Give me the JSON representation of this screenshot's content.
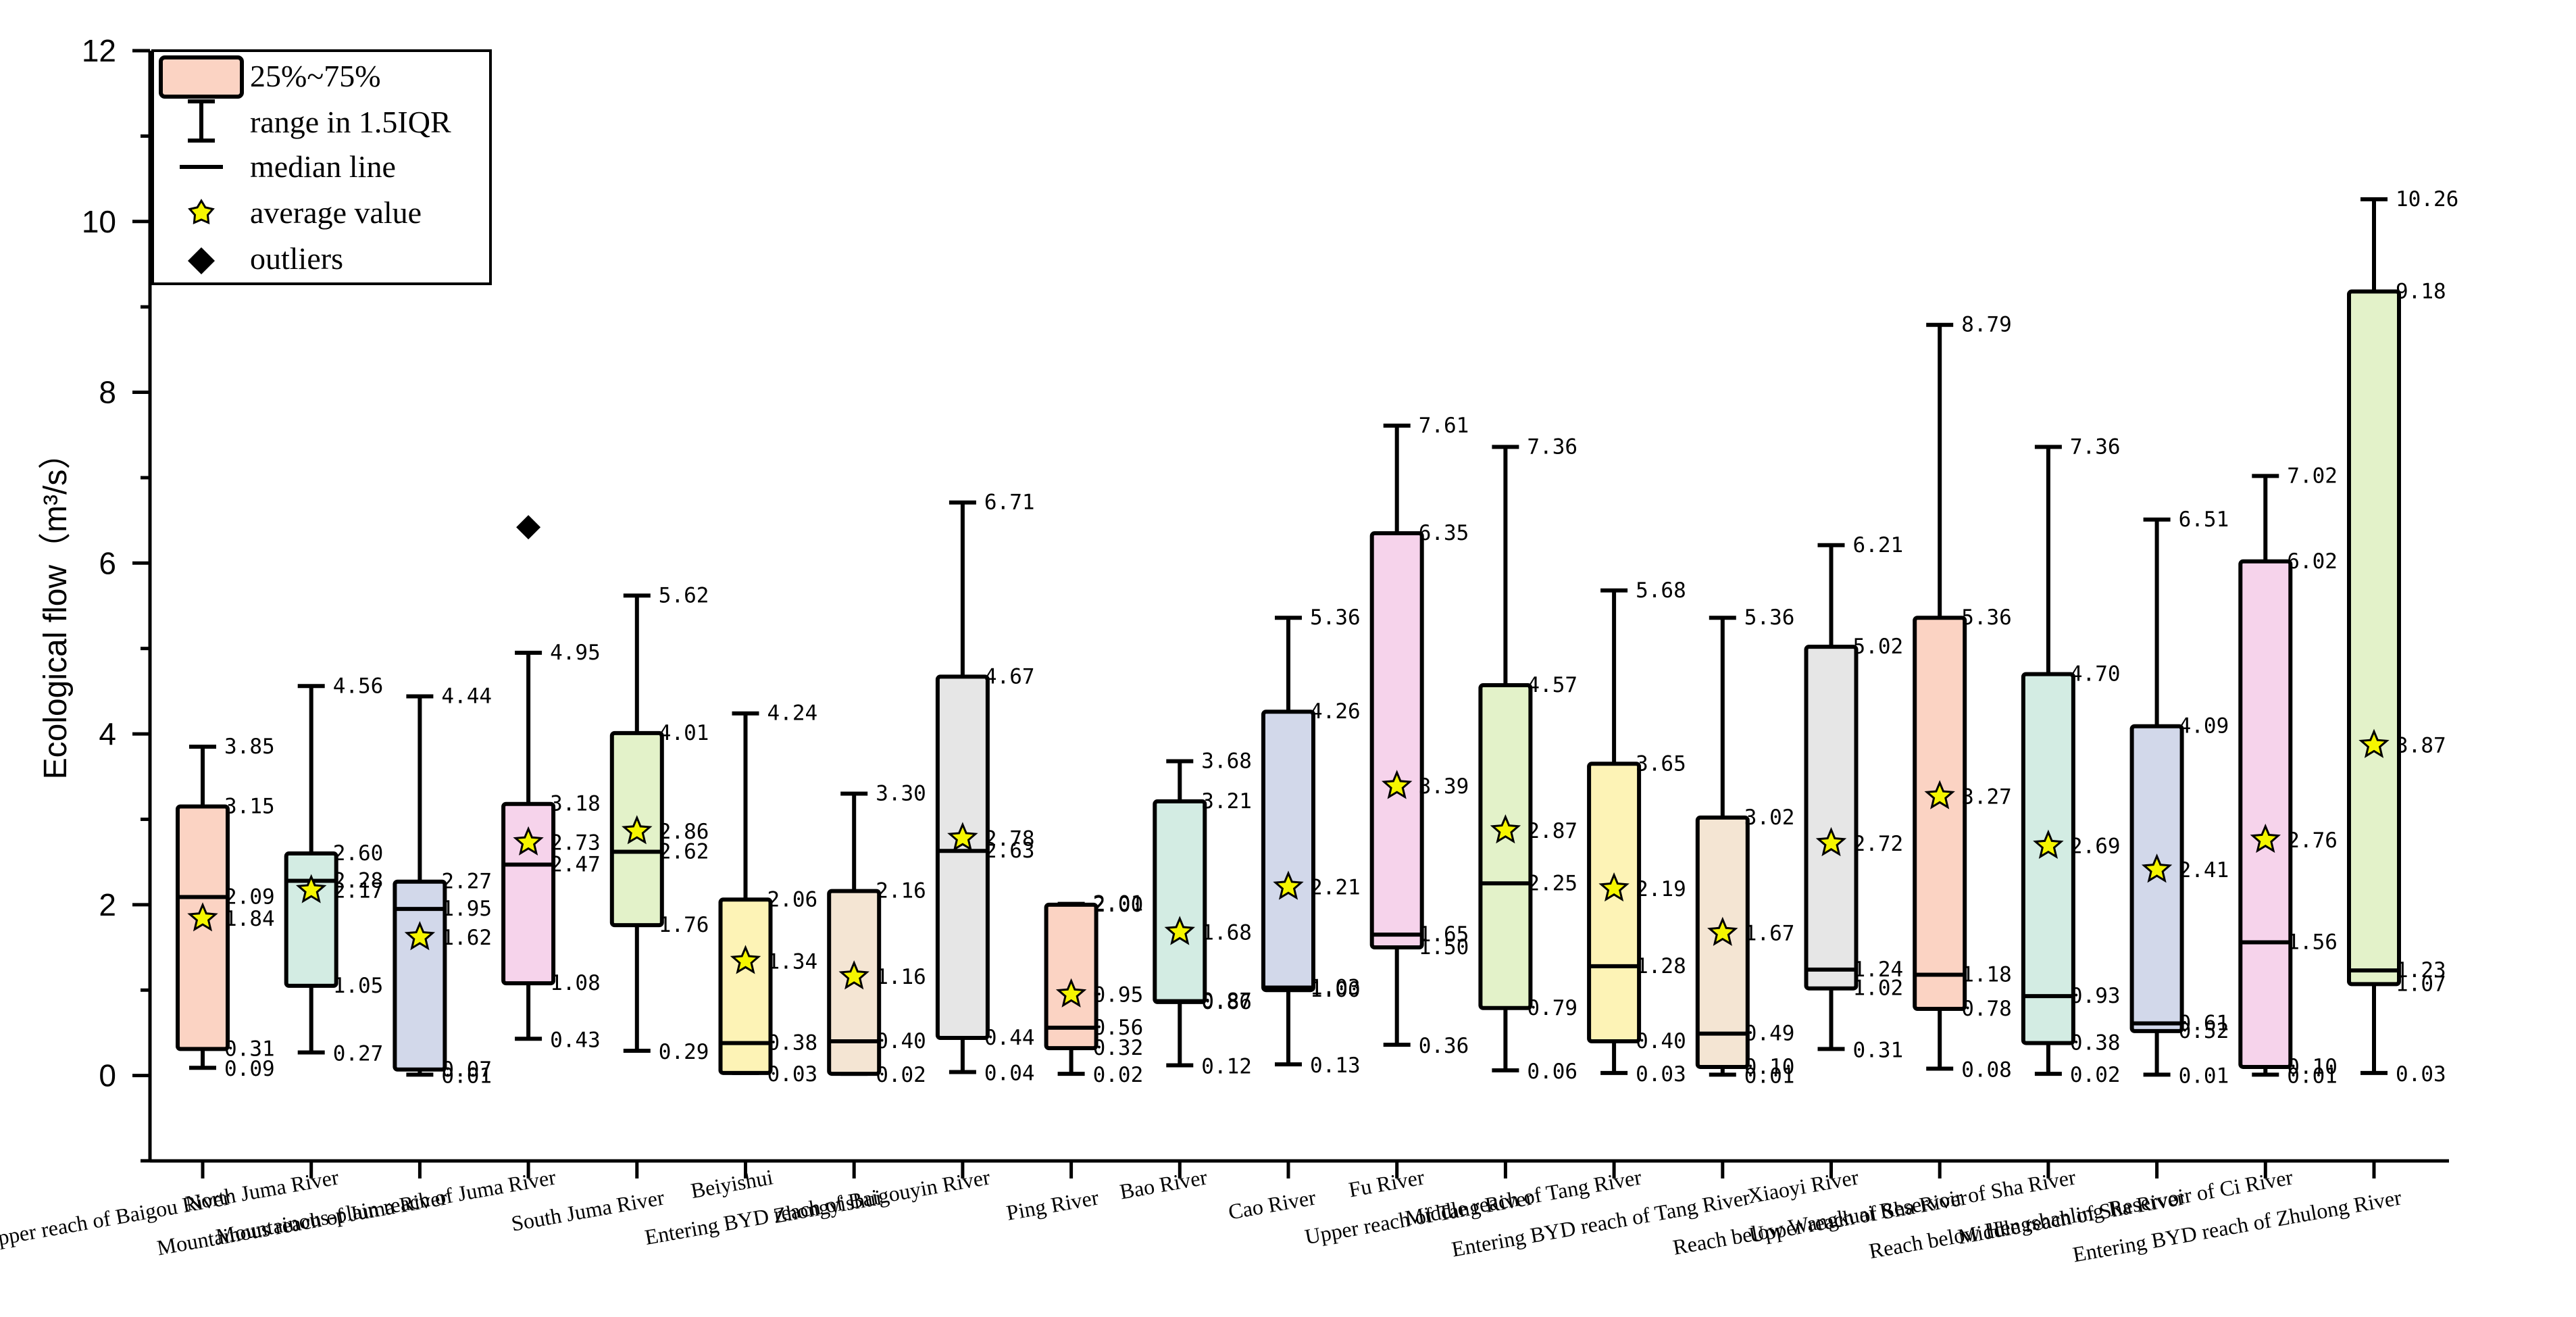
{
  "chart_data": {
    "type": "boxplot",
    "title": "",
    "xlabel": "",
    "ylabel": "Ecological flow（m³/s）",
    "ylim": [
      -1,
      12
    ],
    "yticks": [
      0,
      2,
      4,
      6,
      8,
      10,
      12
    ],
    "legend": {
      "position": "top-left",
      "items": [
        {
          "label": "25%~75%",
          "symbol": "box"
        },
        {
          "label": "range in 1.5IQR",
          "symbol": "whisker"
        },
        {
          "label": "median line",
          "symbol": "line"
        },
        {
          "label": "average value",
          "symbol": "star"
        },
        {
          "label": "outliers",
          "symbol": "diamond"
        }
      ]
    },
    "series": [
      {
        "name": "Upper reach of Baigou River",
        "color": "#fbd3c3",
        "min": 0.09,
        "q1": 0.31,
        "median": 2.09,
        "q3": 3.15,
        "max": 3.85,
        "mean": 1.84,
        "outliers": [],
        "labels": {
          "max": "3.85",
          "q3": "3.15",
          "median": "2.09",
          "mean": "1.84",
          "q1": "0.31",
          "min": "0.09"
        }
      },
      {
        "name": "North Juma River",
        "color": "#d3ece3",
        "min": 0.27,
        "q1": 1.05,
        "median": 2.28,
        "q3": 2.6,
        "max": 4.56,
        "mean": 2.17,
        "outliers": [],
        "labels": {
          "max": "4.56",
          "q3": "2.60",
          "median": "2.28",
          "mean": "2.17",
          "q1": "1.05",
          "min": "0.27"
        }
      },
      {
        "name": "Mountainous reach of Juma River",
        "color": "#d2d8ea",
        "min": 0.01,
        "q1": 0.07,
        "median": 1.95,
        "q3": 2.27,
        "max": 4.44,
        "mean": 1.62,
        "outliers": [],
        "labels": {
          "max": "4.44",
          "q3": "2.27",
          "median": "1.95",
          "mean": "1.62",
          "q1": "0.07",
          "min": "0.01"
        }
      },
      {
        "name": "Mountainous-plain reach of Juma River",
        "color": "#f6d3eb",
        "min": 0.43,
        "q1": 1.08,
        "median": 2.47,
        "q3": 3.18,
        "max": 4.95,
        "mean": 2.73,
        "outliers": [
          6.42
        ],
        "labels": {
          "max": "4.95",
          "q3": "3.18",
          "median": "2.47",
          "mean": "2.73",
          "q1": "1.08",
          "min": "0.43"
        }
      },
      {
        "name": "South Juma River",
        "color": "#e3f2c9",
        "min": 0.29,
        "q1": 1.76,
        "median": 2.62,
        "q3": 4.01,
        "max": 5.62,
        "mean": 2.86,
        "outliers": [],
        "labels": {
          "max": "5.62",
          "q3": "4.01",
          "median": "2.62",
          "mean": "2.86",
          "q1": "1.76",
          "min": "0.29"
        }
      },
      {
        "name": "Beiyishui",
        "color": "#fdf3b6",
        "min": 0.03,
        "q1": 0.03,
        "median": 0.38,
        "q3": 2.06,
        "max": 4.24,
        "mean": 1.34,
        "outliers": [],
        "labels": {
          "max": "4.24",
          "q3": "2.06",
          "median": "0.38",
          "mean": "1.34",
          "q1": "",
          "min": "0.03"
        }
      },
      {
        "name": "Zhongyishui",
        "color": "#f4e5d3",
        "min": 0.02,
        "q1": 0.02,
        "median": 0.4,
        "q3": 2.16,
        "max": 3.3,
        "mean": 1.16,
        "outliers": [],
        "labels": {
          "max": "3.30",
          "q3": "2.16",
          "median": "0.40",
          "mean": "1.16",
          "q1": "",
          "min": "0.02"
        }
      },
      {
        "name": "Entering BYD reach of Baigouyin River",
        "color": "#e6e6e6",
        "min": 0.04,
        "q1": 0.44,
        "median": 2.63,
        "q3": 4.67,
        "max": 6.71,
        "mean": 2.78,
        "outliers": [],
        "labels": {
          "max": "6.71",
          "q3": "4.67",
          "median": "2.63",
          "mean": "2.78",
          "q1": "0.44",
          "min": "0.04"
        }
      },
      {
        "name": "Ping River",
        "color": "#fbd3c3",
        "min": 0.02,
        "q1": 0.32,
        "median": 0.56,
        "q3": 2.0,
        "max": 2.01,
        "mean": 0.95,
        "outliers": [],
        "labels": {
          "max": "2.01",
          "q3": "2.00",
          "median": "0.56",
          "mean": "0.95",
          "q1": "0.32",
          "min": "0.02"
        }
      },
      {
        "name": "Bao River",
        "color": "#d3ece3",
        "min": 0.12,
        "q1": 0.86,
        "median": 0.87,
        "q3": 3.21,
        "max": 3.68,
        "mean": 1.68,
        "outliers": [],
        "labels": {
          "max": "3.68",
          "q3": "3.21",
          "median": "0.87",
          "mean": "1.68",
          "q1": "0.86",
          "min": "0.12"
        }
      },
      {
        "name": "Cao River",
        "color": "#d2d8ea",
        "min": 0.13,
        "q1": 1.0,
        "median": 1.03,
        "q3": 4.26,
        "max": 5.36,
        "mean": 2.21,
        "outliers": [],
        "labels": {
          "max": "5.36",
          "q3": "4.26",
          "median": "1.03",
          "mean": "2.21",
          "q1": "1.00",
          "min": "0.13"
        }
      },
      {
        "name": "Fu River",
        "color": "#f6d3eb",
        "min": 0.36,
        "q1": 1.5,
        "median": 1.65,
        "q3": 6.35,
        "max": 7.61,
        "mean": 3.39,
        "outliers": [],
        "labels": {
          "max": "7.61",
          "q3": "6.35",
          "median": "1.65",
          "mean": "3.39",
          "q1": "1.50",
          "min": "0.36"
        }
      },
      {
        "name": "Upper reach of Tang River",
        "color": "#e3f2c9",
        "min": 0.06,
        "q1": 0.79,
        "median": 2.25,
        "q3": 4.57,
        "max": 7.36,
        "mean": 2.87,
        "outliers": [],
        "labels": {
          "max": "7.36",
          "q3": "4.57",
          "median": "2.25",
          "mean": "2.87",
          "q1": "0.79",
          "min": "0.06"
        }
      },
      {
        "name": "Middle reach of Tang River",
        "color": "#fdf3b6",
        "min": 0.03,
        "q1": 0.4,
        "median": 1.28,
        "q3": 3.65,
        "max": 5.68,
        "mean": 2.19,
        "outliers": [],
        "labels": {
          "max": "5.68",
          "q3": "3.65",
          "median": "1.28",
          "mean": "2.19",
          "q1": "0.40",
          "min": "0.03"
        }
      },
      {
        "name": "Entering BYD reach of Tang River",
        "color": "#f4e5d3",
        "min": 0.01,
        "q1": 0.1,
        "median": 0.49,
        "q3": 3.02,
        "max": 5.36,
        "mean": 1.67,
        "outliers": [],
        "labels": {
          "max": "5.36",
          "q3": "3.02",
          "median": "0.49",
          "mean": "1.67",
          "q1": "0.10",
          "min": "0.01"
        }
      },
      {
        "name": "Xiaoyi River",
        "color": "#e6e6e6",
        "min": 0.31,
        "q1": 1.02,
        "median": 1.24,
        "q3": 5.02,
        "max": 6.21,
        "mean": 2.72,
        "outliers": [],
        "labels": {
          "max": "6.21",
          "q3": "5.02",
          "median": "1.24",
          "mean": "2.72",
          "q1": "1.02",
          "min": "0.31"
        }
      },
      {
        "name": "Upper reach of Sha River",
        "color": "#fbd3c3",
        "min": 0.08,
        "q1": 0.78,
        "median": 1.18,
        "q3": 5.36,
        "max": 8.79,
        "mean": 3.27,
        "outliers": [],
        "labels": {
          "max": "8.79",
          "q3": "5.36",
          "median": "1.18",
          "mean": "3.27",
          "q1": "0.78",
          "min": "0.08"
        }
      },
      {
        "name": "Reach below Wangkuai Reservoir of Sha River",
        "color": "#d3ece3",
        "min": 0.02,
        "q1": 0.38,
        "median": 0.93,
        "q3": 4.7,
        "max": 7.36,
        "mean": 2.69,
        "outliers": [],
        "labels": {
          "max": "7.36",
          "q3": "4.70",
          "median": "0.93",
          "mean": "2.69",
          "q1": "0.38",
          "min": "0.02"
        }
      },
      {
        "name": "Middle reach of Sha River",
        "color": "#d2d8ea",
        "min": 0.01,
        "q1": 0.52,
        "median": 0.61,
        "q3": 4.09,
        "max": 6.51,
        "mean": 2.41,
        "outliers": [],
        "labels": {
          "max": "6.51",
          "q3": "4.09",
          "median": "0.61",
          "mean": "2.41",
          "q1": "0.52",
          "min": "0.01"
        }
      },
      {
        "name": "Reach below Hengshanling Reservoir of Ci River",
        "color": "#f6d3eb",
        "min": 0.01,
        "q1": 0.1,
        "median": 1.56,
        "q3": 6.02,
        "max": 7.02,
        "mean": 2.76,
        "outliers": [],
        "labels": {
          "max": "7.02",
          "q3": "6.02",
          "median": "1.56",
          "mean": "2.76",
          "q1": "0.10",
          "min": "0.01"
        }
      },
      {
        "name": "Entering BYD reach of Zhulong River",
        "color": "#e3f2c9",
        "min": 0.03,
        "q1": 1.07,
        "median": 1.23,
        "q3": 9.18,
        "max": 10.26,
        "mean": 3.87,
        "outliers": [],
        "labels": {
          "max": "10.26",
          "q3": "9.18",
          "median": "1.23",
          "mean": "3.87",
          "q1": "1.07",
          "min": "0.03"
        }
      }
    ]
  }
}
